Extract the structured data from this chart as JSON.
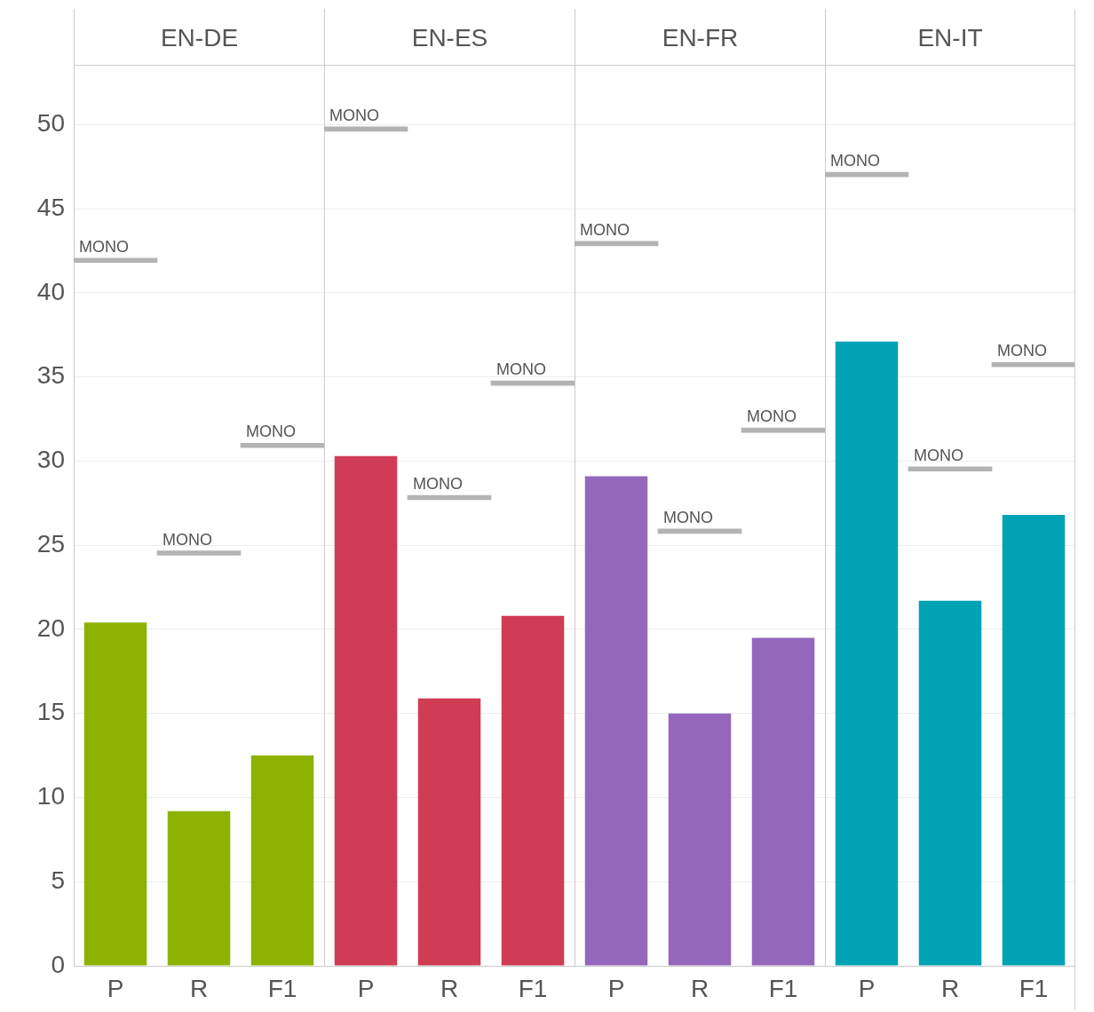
{
  "chart_data": [
    {
      "type": "bar",
      "title": "EN-DE",
      "categories": [
        "P",
        "R",
        "F1"
      ],
      "ylim": [
        0,
        53.5
      ],
      "yticks": [
        0,
        5,
        10,
        15,
        20,
        25,
        30,
        35,
        40,
        45,
        50
      ],
      "grid": "y",
      "series": [
        {
          "color": "#8db200",
          "values": [
            20.4,
            9.2,
            12.5
          ]
        },
        {
          "name": "MONO",
          "type": "bar",
          "color": "#b3b3b3",
          "base": [
            41.8,
            24.4,
            30.8
          ],
          "values": [
            0,
            0,
            0
          ]
        }
      ]
    },
    {
      "type": "bar",
      "title": "EN-ES",
      "categories": [
        "P",
        "R",
        "F1"
      ],
      "ylim": [
        0,
        53.5
      ],
      "yticks": [
        0,
        5,
        10,
        15,
        20,
        25,
        30,
        35,
        40,
        45,
        50
      ],
      "grid": "y",
      "tick_labels": "x",
      "series": [
        {
          "color": "#cf3c53",
          "values": [
            30.3,
            15.9,
            20.8
          ]
        },
        {
          "name": "MONO",
          "type": "bar",
          "color": "#b3b3b3",
          "base": [
            49.6,
            27.7,
            34.5
          ],
          "values": [
            0,
            0,
            0
          ]
        }
      ]
    },
    {
      "type": "bar",
      "title": "EN-FR",
      "categories": [
        "P",
        "R",
        "F1"
      ],
      "ylim": [
        0,
        53.5
      ],
      "yticks": [
        0,
        5,
        10,
        15,
        20,
        25,
        30,
        35,
        40,
        45,
        50
      ],
      "grid": "y",
      "tick_labels": "x",
      "series": [
        {
          "color": "#9467bd",
          "values": [
            29.1,
            15.0,
            19.5
          ]
        },
        {
          "name": "MONO",
          "type": "bar",
          "color": "#b3b3b3",
          "base": [
            42.8,
            25.7,
            31.7
          ],
          "values": [
            0,
            0,
            0
          ]
        }
      ]
    },
    {
      "type": "bar",
      "title": "EN-IT",
      "categories": [
        "P",
        "R",
        "F1"
      ],
      "ylim": [
        0,
        53.5
      ],
      "yticks": [
        0,
        5,
        10,
        15,
        20,
        25,
        30,
        35,
        40,
        45,
        50
      ],
      "grid": "y",
      "tick_labels": "x",
      "series": [
        {
          "color": "#00a3b4",
          "values": [
            37.1,
            21.7,
            26.8
          ]
        },
        {
          "name": "MONO",
          "type": "bar",
          "color": "#b3b3b3",
          "base": [
            46.9,
            29.4,
            35.6
          ],
          "values": [
            0,
            0,
            0
          ]
        }
      ]
    }
  ]
}
